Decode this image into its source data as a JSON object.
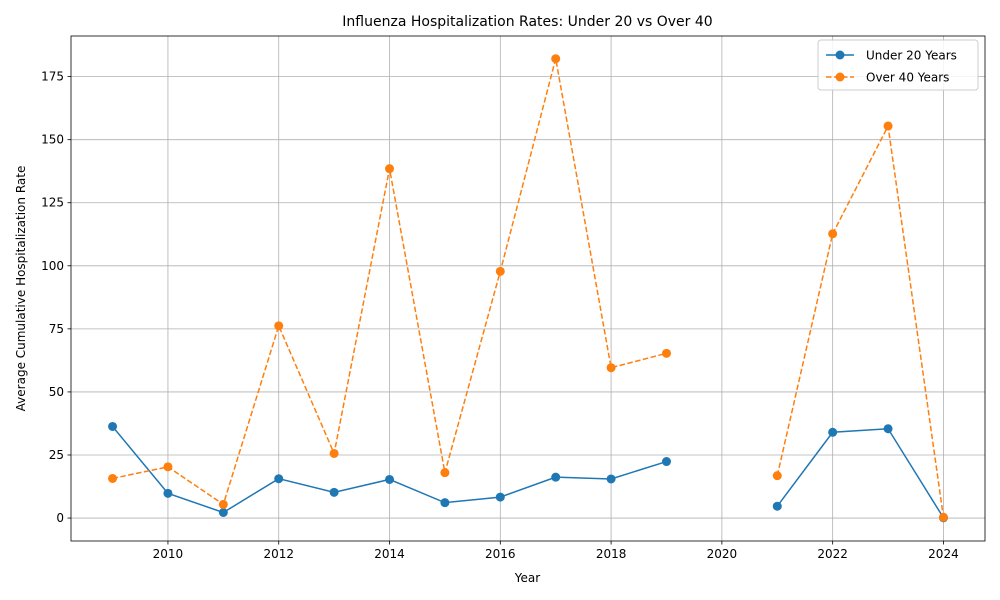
{
  "chart_data": {
    "type": "line",
    "title": "Influenza Hospitalization Rates: Under 20 vs Over 40",
    "xlabel": "Year",
    "ylabel": "Average Cumulative Hospitalization Rate",
    "xlim": [
      2008.25,
      2024.75
    ],
    "ylim": [
      -9.1,
      191.1
    ],
    "xticks": [
      2010,
      2012,
      2014,
      2016,
      2018,
      2020,
      2022,
      2024
    ],
    "yticks": [
      0,
      25,
      50,
      75,
      100,
      125,
      150,
      175
    ],
    "grid": true,
    "legend_position": "top-right",
    "x": [
      2009,
      2010,
      2011,
      2012,
      2013,
      2014,
      2015,
      2016,
      2017,
      2018,
      2019,
      2020,
      2021,
      2022,
      2023,
      2024
    ],
    "series": [
      {
        "name": "Under 20 Years",
        "color": "#1f77b4",
        "line_style": "solid",
        "marker": "circle",
        "values": [
          36.3,
          9.8,
          2.2,
          15.6,
          10.2,
          15.3,
          6.1,
          8.3,
          16.2,
          15.5,
          22.4,
          null,
          4.7,
          34.0,
          35.4,
          0.1
        ]
      },
      {
        "name": "Over 40 Years",
        "color": "#ff7f0e",
        "line_style": "dashed",
        "marker": "circle",
        "values": [
          15.7,
          20.3,
          5.4,
          76.2,
          25.6,
          138.5,
          18.0,
          97.8,
          182.1,
          59.6,
          65.3,
          null,
          16.8,
          112.7,
          155.4,
          0.3
        ]
      }
    ]
  }
}
